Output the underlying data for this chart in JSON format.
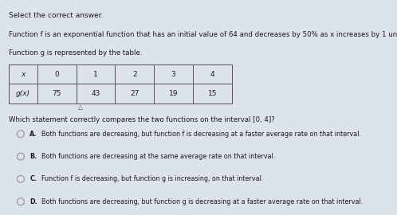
{
  "title_line1": "Select the correct answer.",
  "para1": "Function f is an exponential function that has an initial value of 64 and decreases by 50% as x increases by 1 unit.",
  "para2": "Function g is represented by the table.",
  "table_x_label": "x",
  "table_gx_label": "g(x)",
  "table_x_vals": [
    "0",
    "1",
    "2",
    "3",
    "4"
  ],
  "table_gx_vals": [
    "75",
    "43",
    "27",
    "19",
    "15"
  ],
  "question": "Which statement correctly compares the two functions on the interval [0, 4]?",
  "options": [
    {
      "letter": "A.",
      "text": "Both functions are decreasing, but function f is decreasing at a faster average rate on that interval."
    },
    {
      "letter": "B.",
      "text": "Both functions are decreasing at the same average rate on that interval."
    },
    {
      "letter": "C.",
      "text": "Function f is decreasing, but function g is increasing, on that interval."
    },
    {
      "letter": "D.",
      "text": "Both functions are decreasing, but function g is decreasing at a faster average rate on that interval."
    }
  ],
  "bg_color": "#dce3ec",
  "text_color": "#1a1a1a",
  "table_border_color": "#555555",
  "circle_color": "#888888",
  "font_size_title": 6.5,
  "font_size_body": 6.2,
  "font_size_table": 6.5,
  "font_size_question": 6.2,
  "font_size_options": 5.8
}
